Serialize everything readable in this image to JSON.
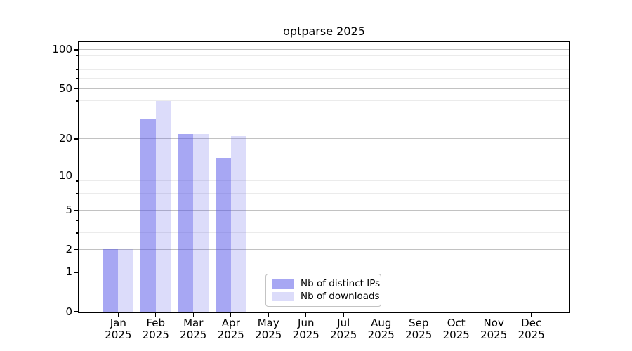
{
  "chart_data": {
    "type": "bar",
    "title": "optparse 2025",
    "categories": [
      "Jan",
      "Feb",
      "Mar",
      "Apr",
      "May",
      "Jun",
      "Jul",
      "Aug",
      "Sep",
      "Oct",
      "Nov",
      "Dec"
    ],
    "category_year": "2025",
    "series": [
      {
        "name": "Nb of distinct IPs",
        "color": "rgba(80,80,232,0.5)",
        "values": [
          2,
          29,
          22,
          14,
          0,
          0,
          0,
          0,
          0,
          0,
          0,
          0
        ]
      },
      {
        "name": "Nb of downloads",
        "color": "rgba(80,80,232,0.2)",
        "values": [
          2,
          40,
          22,
          21,
          0,
          0,
          0,
          0,
          0,
          0,
          0,
          0
        ]
      }
    ],
    "y_scale": "log10(v+1)",
    "y_major_ticks": [
      0,
      1,
      2,
      5,
      10,
      20,
      50,
      100
    ],
    "y_minor_ticks": [
      3,
      4,
      6,
      7,
      8,
      9,
      30,
      40,
      60,
      70,
      80,
      90
    ],
    "ylim": [
      0,
      115
    ],
    "grid": "horizontal",
    "legend_position": "lower center",
    "colors": {
      "bar_base": "#5050e8",
      "major_grid": "#c2c2c2",
      "minor_grid": "#ebebeb",
      "spine": "#000000",
      "text": "#000000",
      "legend_border": "#c3c3c3",
      "background": "#ffffff"
    }
  }
}
